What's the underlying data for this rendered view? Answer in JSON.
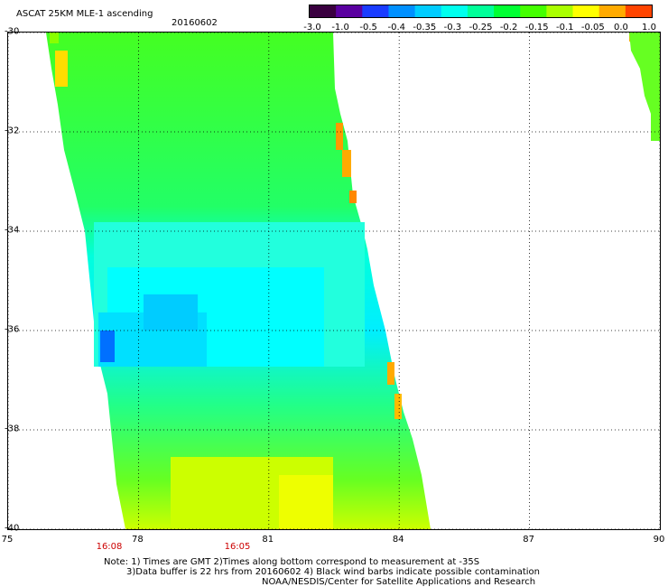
{
  "header": {
    "title": "ASCAT 25KM MLE-1 ascending",
    "date": "20160602"
  },
  "colorbar": {
    "labels": [
      "-3.0",
      "-1.0",
      "-0.5",
      "-0.4",
      "-0.35",
      "-0.3",
      "-0.25",
      "-0.2",
      "-0.15",
      "-0.1",
      "-0.05",
      "0.0",
      "1.0"
    ],
    "colors": [
      "#3a0040",
      "#5a00a0",
      "#1a3cff",
      "#0090ff",
      "#00ccff",
      "#00ffee",
      "#00ff99",
      "#00ff33",
      "#44ff00",
      "#aaff00",
      "#ffff00",
      "#ffaa00",
      "#ff4400"
    ]
  },
  "axes": {
    "lat_labels": [
      "-30",
      "-32",
      "-34",
      "-36",
      "-38",
      "-40"
    ],
    "lon_labels": [
      "75",
      "78",
      "81",
      "84",
      "87",
      "90"
    ],
    "lat_range": [
      -30,
      -40
    ],
    "lon_range": [
      75,
      90
    ]
  },
  "time_labels": [
    "16:08",
    "16:05"
  ],
  "notes": {
    "line1": "Note: 1) Times are GMT 2)Times along bottom correspond to measurement at -35S",
    "line2": "3)Data buffer is 22 hrs from 20160602 4) Black wind barbs indicate possible contamination",
    "line3": "NOAA/NESDIS/Center for Satellite Applications and Research"
  }
}
